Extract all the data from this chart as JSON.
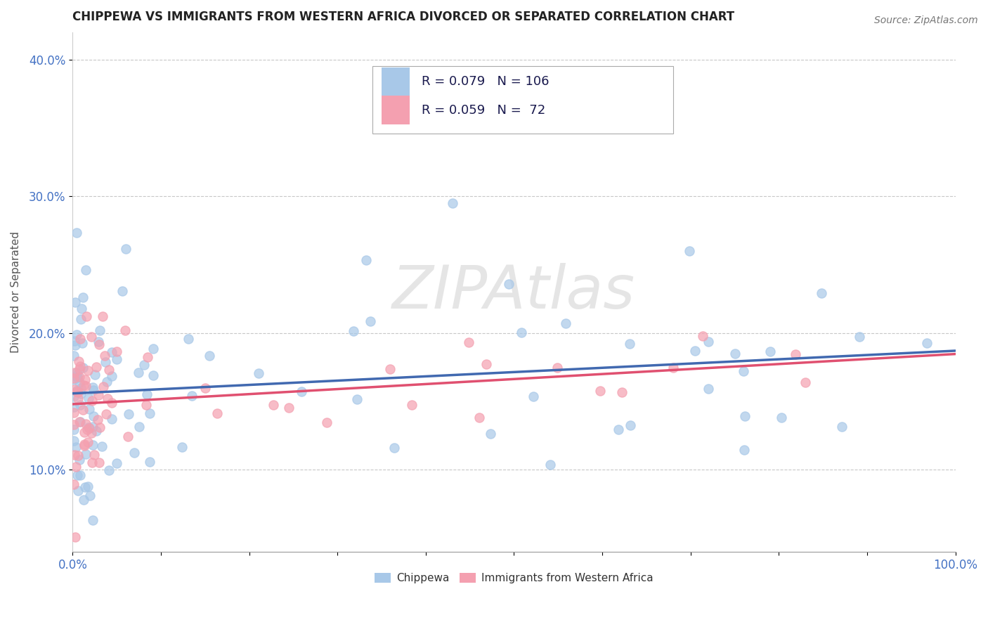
{
  "title": "CHIPPEWA VS IMMIGRANTS FROM WESTERN AFRICA DIVORCED OR SEPARATED CORRELATION CHART",
  "source_text": "Source: ZipAtlas.com",
  "ylabel": "Divorced or Separated",
  "xlabel": "",
  "xlim": [
    0.0,
    1.0
  ],
  "ylim": [
    0.04,
    0.42
  ],
  "yticks": [
    0.1,
    0.2,
    0.3,
    0.4
  ],
  "ytick_labels": [
    "10.0%",
    "20.0%",
    "30.0%",
    "40.0%"
  ],
  "xtick_labels": [
    "0.0%",
    "",
    "",
    "",
    "",
    "",
    "",
    "",
    "",
    "",
    "100.0%"
  ],
  "blue_color": "#a8c8e8",
  "pink_color": "#f4a0b0",
  "blue_line_color": "#4169b0",
  "pink_line_color": "#e05070",
  "series1_label": "Chippewa",
  "series2_label": "Immigrants from Western Africa",
  "watermark": "ZIPAtlas",
  "background_color": "#ffffff",
  "title_fontsize": 12,
  "axis_label_color": "#4472c4",
  "text_color": "#1a1a4e",
  "blue_R": 0.079,
  "blue_N": 106,
  "pink_R": 0.059,
  "pink_N": 72
}
